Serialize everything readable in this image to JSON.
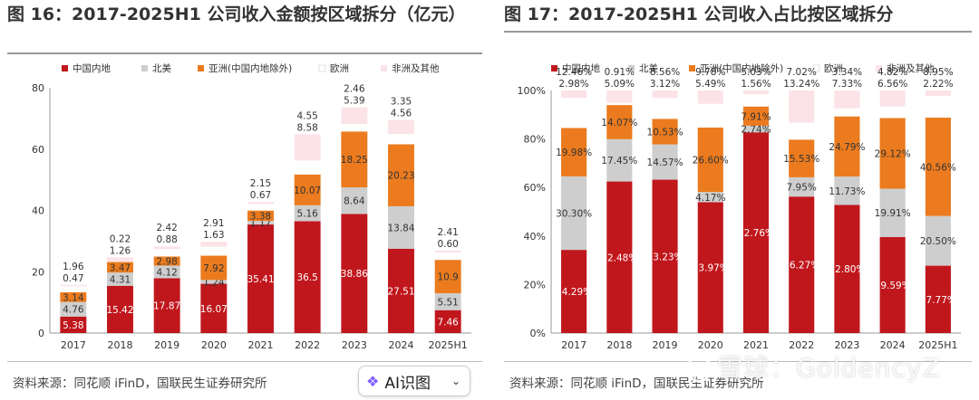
{
  "colors": {
    "china": "#C0171D",
    "north_america": "#CECECE",
    "asia_ex_china": "#EB7B1E",
    "europe": "#FFFFFF",
    "other": "#FBE3E7"
  },
  "footer": {
    "source_left": "资料来源：同花顺 iFinD，国联民生证券研究所",
    "source_right": "资料来源：同花顺 iFinD，国联民生证券研究所",
    "ai_button_label": "AI识图",
    "ai_icon": "sparkle-icon",
    "chevron_icon": "chevron-down-icon",
    "watermark": "雪球：GoldencyZ"
  },
  "chart_data": [
    {
      "type": "bar",
      "stacked": true,
      "title": "图 16：2017-2025H1 公司收入金额按区域拆分（亿元）",
      "categories": [
        "2017",
        "2018",
        "2019",
        "2020",
        "2021",
        "2022",
        "2023",
        "2024",
        "2025H1"
      ],
      "ylim": [
        0,
        80
      ],
      "yticks": [
        0,
        20,
        40,
        60,
        80
      ],
      "legend_position": "top",
      "grid": false,
      "series": [
        {
          "name": "中国内地",
          "color": "#C0171D",
          "label_color": "#ffffff",
          "values": [
            5.38,
            15.42,
            17.87,
            16.07,
            35.41,
            36.5,
            38.86,
            27.51,
            7.46
          ],
          "labels": [
            "5.38",
            "15.42",
            "17.87",
            "16.07",
            "35.41",
            "36.5",
            "38.86",
            "27.51",
            "7.46"
          ]
        },
        {
          "name": "北美",
          "color": "#CECECE",
          "label_color": "#333333",
          "values": [
            4.76,
            4.31,
            4.12,
            1.24,
            1.17,
            5.16,
            8.64,
            13.84,
            5.51
          ],
          "labels": [
            "4.76",
            "4.31",
            "4.12",
            "1.24",
            "1.17",
            "5.16",
            "8.64",
            "13.84",
            "5.51"
          ]
        },
        {
          "name": "亚洲(中国内地除外)",
          "color": "#EB7B1E",
          "label_color": "#333333",
          "values": [
            3.14,
            3.47,
            2.98,
            7.92,
            3.38,
            10.07,
            18.25,
            20.23,
            10.9
          ],
          "labels": [
            "3.14",
            "3.47",
            "2.98",
            "7.92",
            "3.38",
            "10.07",
            "18.25",
            "20.23",
            "10.9"
          ]
        },
        {
          "name": "欧洲",
          "color": "#FFFFFF",
          "label_color": "#333333",
          "values": [
            1.96,
            0.22,
            2.42,
            2.91,
            2.15,
            4.55,
            2.46,
            3.35,
            2.41
          ],
          "labels": [
            "1.96",
            "0.22",
            "2.42",
            "2.91",
            "2.15",
            "4.55",
            "2.46",
            "3.35",
            "2.41"
          ]
        },
        {
          "name": "非洲及其他",
          "color": "#FBE3E7",
          "label_color": "#333333",
          "values": [
            0.47,
            1.26,
            0.88,
            1.63,
            0.67,
            8.58,
            5.39,
            4.56,
            0.6
          ],
          "labels": [
            "0.47",
            "1.26",
            "0.88",
            "1.63",
            "0.67",
            "8.58",
            "5.39",
            "4.56",
            "0.60"
          ]
        }
      ]
    },
    {
      "type": "bar",
      "stacked": true,
      "title": "图 17：2017-2025H1 公司收入占比按区域拆分",
      "categories": [
        "2017",
        "2018",
        "2019",
        "2020",
        "2021",
        "2022",
        "2023",
        "2024",
        "2025H1"
      ],
      "ylim": [
        0,
        100
      ],
      "yticks": [
        "0%",
        "20%",
        "40%",
        "60%",
        "80%",
        "100%"
      ],
      "legend_position": "top",
      "grid": false,
      "series": [
        {
          "name": "中国内地",
          "color": "#C0171D",
          "label_color": "#ffffff",
          "values": [
            34.29,
            62.48,
            63.23,
            53.97,
            82.76,
            56.27,
            52.8,
            39.59,
            27.77
          ],
          "labels": [
            "34.29%",
            "62.48%",
            "63.23%",
            "53.97%",
            "82.76%",
            "56.27%",
            "52.80%",
            "39.59%",
            "27.77%"
          ]
        },
        {
          "name": "北美",
          "color": "#CECECE",
          "label_color": "#333333",
          "values": [
            30.3,
            17.45,
            14.57,
            4.17,
            2.74,
            7.95,
            11.73,
            19.91,
            20.5
          ],
          "labels": [
            "30.30%",
            "17.45%",
            "14.57%",
            "4.17%",
            "2.74%",
            "7.95%",
            "11.73%",
            "19.91%",
            "20.50%"
          ]
        },
        {
          "name": "亚洲(中国内地除外)",
          "color": "#EB7B1E",
          "label_color": "#333333",
          "values": [
            19.98,
            14.07,
            10.53,
            26.6,
            7.91,
            15.53,
            24.79,
            29.12,
            40.56
          ],
          "labels": [
            "19.98%",
            "14.07%",
            "10.53%",
            "26.60%",
            "7.91%",
            "15.53%",
            "24.79%",
            "29.12%",
            "40.56%"
          ]
        },
        {
          "name": "欧洲",
          "color": "#FFFFFF",
          "label_color": "#333333",
          "values": [
            12.46,
            0.91,
            8.56,
            9.78,
            5.03,
            7.02,
            3.34,
            4.82,
            8.95
          ],
          "labels": [
            "12.46%",
            "0.91%",
            "8.56%",
            "9.78%",
            "5.03%",
            "7.02%",
            "3.34%",
            "4.82%",
            "8.95%"
          ]
        },
        {
          "name": "非洲及其他",
          "color": "#FBE3E7",
          "label_color": "#333333",
          "values": [
            2.98,
            5.09,
            3.12,
            5.49,
            1.56,
            13.24,
            7.33,
            6.56,
            2.22
          ],
          "labels": [
            "2.98%",
            "5.09%",
            "3.12%",
            "5.49%",
            "1.56%",
            "13.24%",
            "7.33%",
            "6.56%",
            "2.22%"
          ]
        }
      ]
    }
  ]
}
